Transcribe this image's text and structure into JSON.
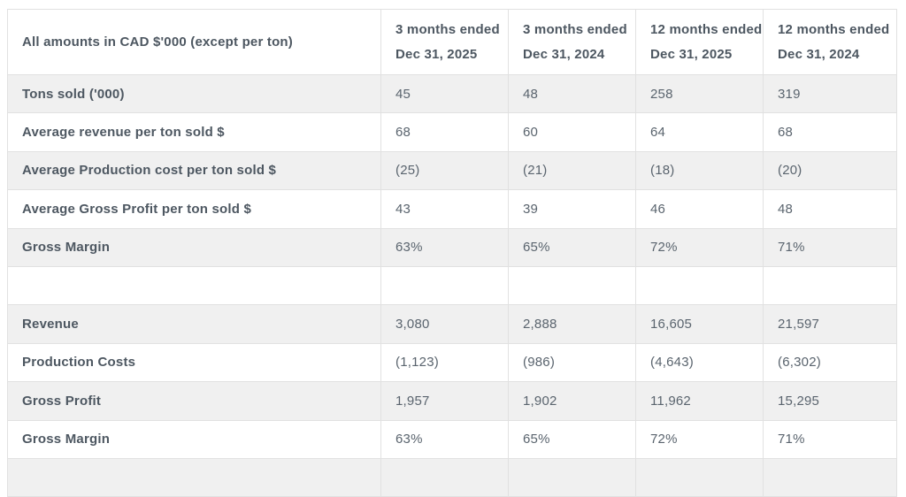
{
  "chart_data": {
    "type": "table",
    "corner_label": "All amounts in CAD $'000 (except per ton)",
    "columns": [
      {
        "line1": "3 months ended",
        "line2": "Dec 31, 2025"
      },
      {
        "line1": "3 months ended",
        "line2": "Dec 31, 2024"
      },
      {
        "line1": "12 months ended",
        "line2": "Dec 31, 2025"
      },
      {
        "line1": "12 months ended",
        "line2": "Dec 31, 2024"
      }
    ],
    "rows": [
      {
        "label": "Tons sold ('000)",
        "values": [
          "45",
          "48",
          "258",
          "319"
        ]
      },
      {
        "label": "Average revenue per ton sold $",
        "values": [
          "68",
          "60",
          "64",
          "68"
        ]
      },
      {
        "label": "Average Production cost per ton sold $",
        "values": [
          "(25)",
          "(21)",
          "(18)",
          "(20)"
        ]
      },
      {
        "label": "Average Gross Profit per ton sold $",
        "values": [
          "43",
          "39",
          "46",
          "48"
        ]
      },
      {
        "label": "Gross Margin",
        "values": [
          "63%",
          "65%",
          "72%",
          "71%"
        ]
      },
      {
        "label": "",
        "values": [
          "",
          "",
          "",
          ""
        ]
      },
      {
        "label": "Revenue",
        "values": [
          "3,080",
          "2,888",
          "16,605",
          "21,597"
        ]
      },
      {
        "label": "Production Costs",
        "values": [
          "(1,123)",
          "(986)",
          "(4,643)",
          "(6,302)"
        ]
      },
      {
        "label": "Gross Profit",
        "values": [
          "1,957",
          "1,902",
          "11,962",
          "15,295"
        ]
      },
      {
        "label": "Gross Margin",
        "values": [
          "63%",
          "65%",
          "72%",
          "71%"
        ]
      },
      {
        "label": "",
        "values": [
          "",
          "",
          "",
          ""
        ]
      }
    ]
  },
  "colors": {
    "row_stripe": "#f0f0f0",
    "row_white": "#ffffff",
    "border": "#e1e1e1",
    "label_text": "#4d5761",
    "value_text": "#5a646e"
  }
}
